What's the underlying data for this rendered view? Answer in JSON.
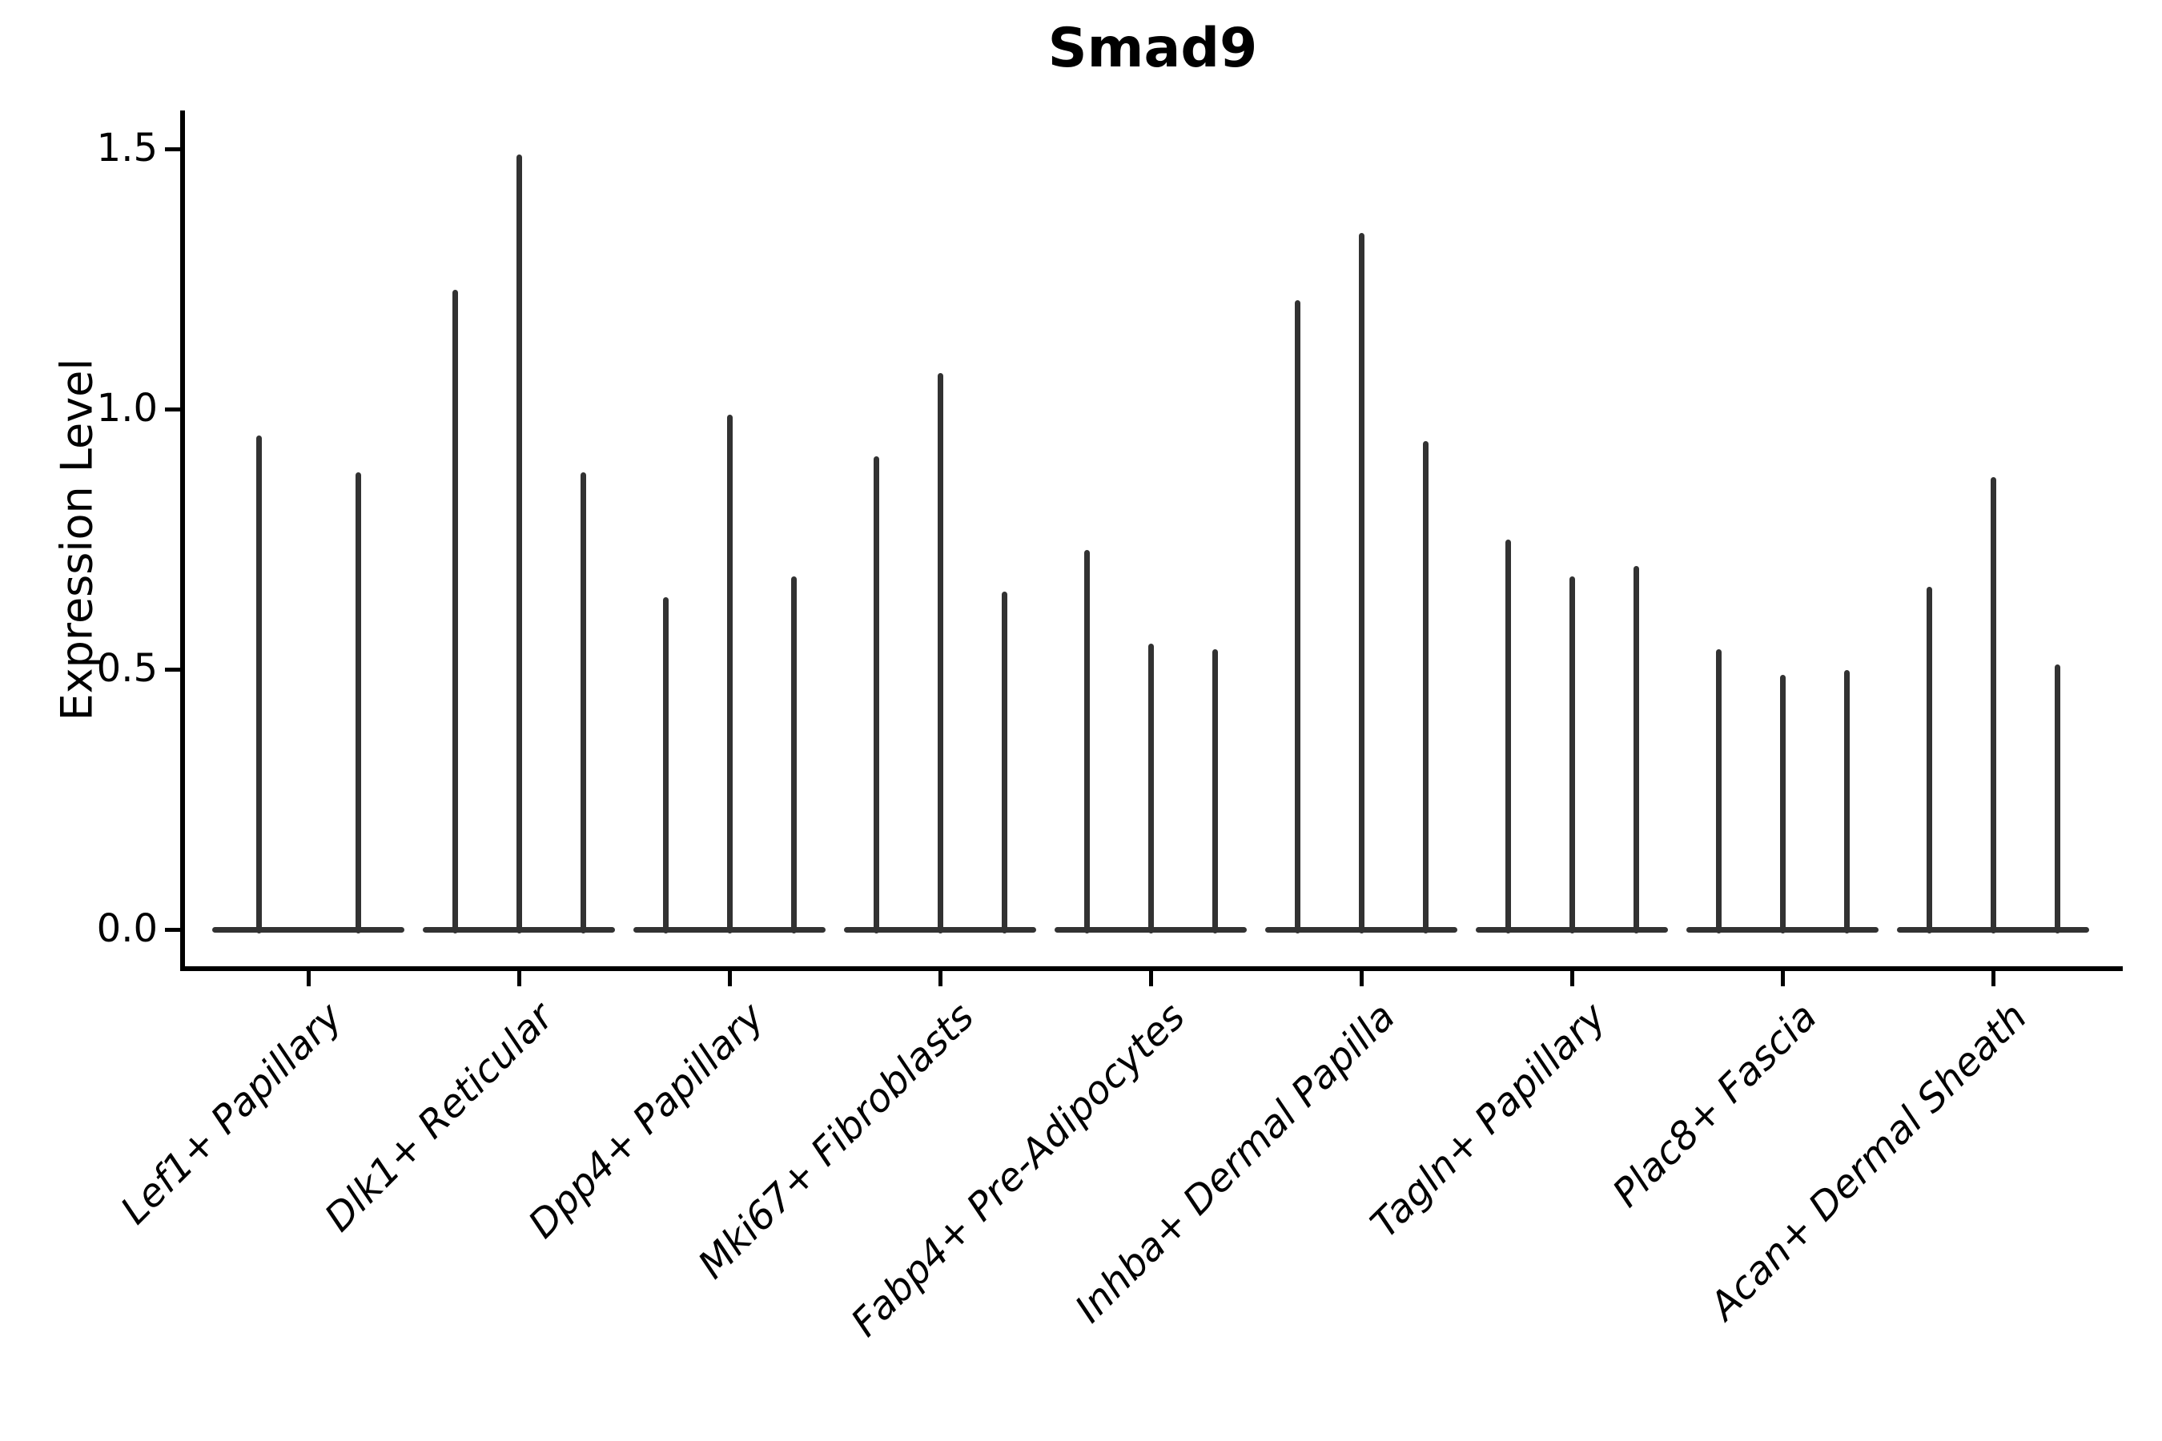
{
  "chart_data": {
    "type": "violin",
    "title": "Smad9",
    "xlabel": "",
    "ylabel": "Expression Level",
    "yticks": [
      0.0,
      0.5,
      1.0,
      1.5
    ],
    "ylim": [
      -0.08,
      1.58
    ],
    "grid": false,
    "legend": null,
    "categories": [
      "Lef1+ Papillary",
      "Dlk1+ Reticular",
      "Dpp4+ Papillary",
      "Mki67+ Fibroblasts",
      "Fabp4+ Pre-Adipocytes",
      "Inhba+ Dermal Papilla",
      "Tagln+ Papillary",
      "Plac8+ Fascia",
      "Acan+ Dermal Sheath"
    ],
    "violins": [
      {
        "category": "Lef1+ Papillary",
        "max_values": [
          0.95,
          0.88
        ]
      },
      {
        "category": "Dlk1+ Reticular",
        "max_values": [
          1.23,
          1.49,
          0.88
        ]
      },
      {
        "category": "Dpp4+ Papillary",
        "max_values": [
          0.64,
          0.99,
          0.68
        ]
      },
      {
        "category": "Mki67+ Fibroblasts",
        "max_values": [
          0.91,
          1.07,
          0.65
        ]
      },
      {
        "category": "Fabp4+ Pre-Adipocytes",
        "max_values": [
          0.73,
          0.55,
          0.54
        ]
      },
      {
        "category": "Inhba+ Dermal Papilla",
        "max_values": [
          1.21,
          1.34,
          0.94
        ]
      },
      {
        "category": "Tagln+ Papillary",
        "max_values": [
          0.75,
          0.68,
          0.7
        ]
      },
      {
        "category": "Plac8+ Fascia",
        "max_values": [
          0.54,
          0.49,
          0.5
        ]
      },
      {
        "category": "Acan+ Dermal Sheath",
        "max_values": [
          0.66,
          0.87,
          0.51
        ]
      }
    ]
  },
  "style": {
    "background_color": "#ffffff",
    "axis_color": "#000000",
    "violin_color": "#323232"
  }
}
